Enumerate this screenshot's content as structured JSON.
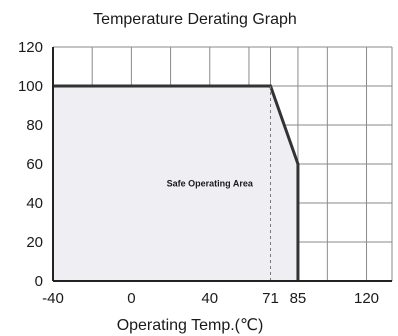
{
  "chart_data": {
    "type": "area",
    "title": "Temperature Derating Graph",
    "xlabel": "Operating Temp.(℃)",
    "ylabel": "",
    "xlim": [
      -40,
      133
    ],
    "ylim": [
      0,
      120
    ],
    "x_ticks": [
      -40,
      0,
      40,
      71,
      85,
      120
    ],
    "y_ticks": [
      0,
      20,
      40,
      60,
      80,
      100,
      120
    ],
    "x_gridlines": [
      -40,
      -20,
      0,
      20,
      40,
      60,
      71,
      85,
      100,
      120,
      133
    ],
    "y_gridlines": [
      0,
      20,
      40,
      60,
      80,
      100,
      120
    ],
    "grid": true,
    "series": [
      {
        "x": [
          -40,
          71,
          85,
          85
        ],
        "y": [
          100,
          100,
          60,
          0
        ]
      }
    ],
    "annotations": [
      {
        "text": "Safe Operating Area",
        "x": 40,
        "y": 50
      }
    ],
    "reference_lines": [
      {
        "type": "vertical",
        "x": 71,
        "style": "dashed"
      }
    ],
    "colors": {
      "line": "#333333",
      "fill": "#eeeef3",
      "grid": "#8a8a8a",
      "axis": "#222222",
      "text": "#1a1a1a"
    }
  }
}
